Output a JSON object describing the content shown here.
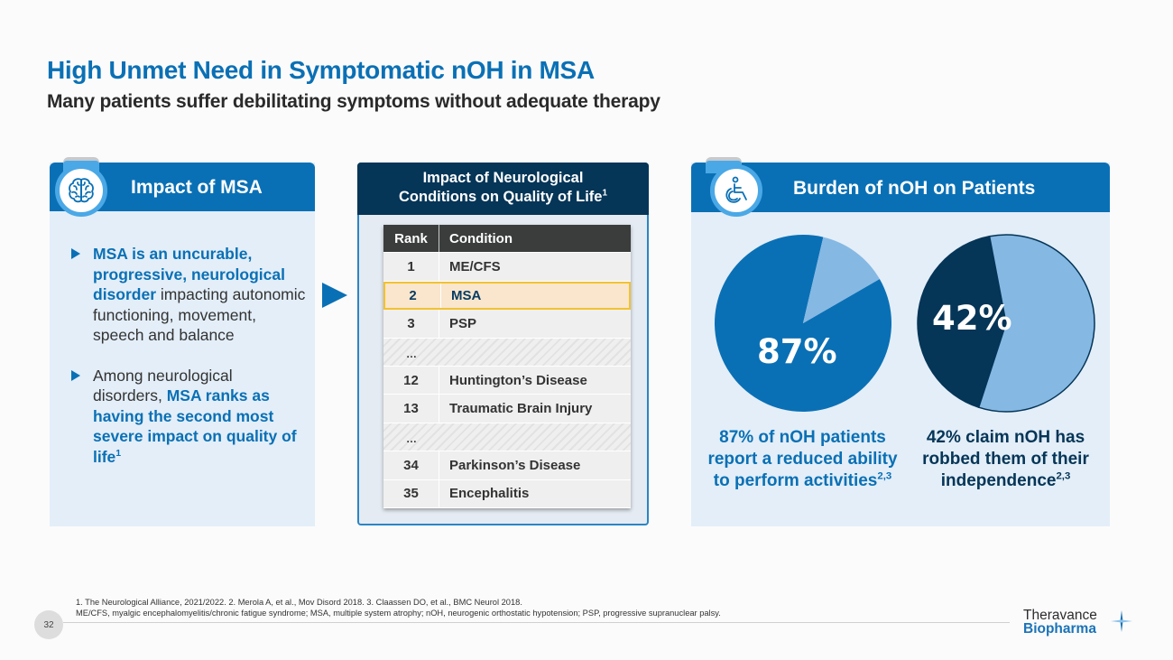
{
  "header": {
    "title": "High Unmet Need in Symptomatic nOH in MSA",
    "subtitle": "Many patients suffer debilitating symptoms without adequate therapy"
  },
  "left_panel": {
    "icon": "brain-icon",
    "title": "Impact of MSA",
    "bullets": [
      {
        "bold": "MSA is an uncurable, progressive, neurological disorder",
        "rest": " impacting autonomic functioning, movement, speech and balance"
      },
      {
        "lead": "Among neurological disorders, ",
        "bold": "MSA ranks as having the second most severe impact on quality of life",
        "sup": "1"
      }
    ]
  },
  "middle_panel": {
    "title_line1": "Impact of Neurological",
    "title_line2": "Conditions on Quality of Life",
    "title_sup": "1",
    "table": {
      "headers": [
        "Rank",
        "Condition"
      ],
      "rows": [
        {
          "rank": "1",
          "condition": "ME/CFS"
        },
        {
          "rank": "2",
          "condition": "MSA",
          "highlight": true
        },
        {
          "rank": "3",
          "condition": "PSP"
        },
        {
          "rank": "…",
          "condition": "",
          "ellipsis": true
        },
        {
          "rank": "12",
          "condition": "Huntington’s Disease"
        },
        {
          "rank": "13",
          "condition": "Traumatic Brain Injury"
        },
        {
          "rank": "…",
          "condition": "",
          "ellipsis": true
        },
        {
          "rank": "34",
          "condition": "Parkinson’s Disease"
        },
        {
          "rank": "35",
          "condition": "Encephalitis"
        }
      ]
    }
  },
  "right_panel": {
    "icon": "wheelchair-icon",
    "title": "Burden of nOH on Patients",
    "captions": [
      {
        "text": "87% of nOH patients report a reduced ability to perform activities",
        "sup": "2,3"
      },
      {
        "text": "42% claim nOH has robbed them of their independence",
        "sup": "2,3"
      }
    ]
  },
  "chart_data": [
    {
      "type": "pie",
      "title": "",
      "label": "87%",
      "slices": [
        {
          "name": "Reduced ability to perform activities",
          "value": 87,
          "color": "#0a70b5"
        },
        {
          "name": "Other",
          "value": 13,
          "color": "#85b8e3"
        }
      ]
    },
    {
      "type": "pie",
      "title": "",
      "label": "42%",
      "slices": [
        {
          "name": "nOH has robbed them of independence",
          "value": 42,
          "color": "#053557"
        },
        {
          "name": "Other",
          "value": 58,
          "color": "#85b8e3"
        }
      ]
    }
  ],
  "footer": {
    "references": "1. The Neurological Alliance, 2021/2022. 2. Merola A, et al., Mov Disord 2018. 3. Claassen DO, et al., BMC Neurol 2018.",
    "abbreviations": "ME/CFS, myalgic encephalomyelitis/chronic fatigue syndrome; MSA, multiple system atrophy; nOH, neurogenic orthostatic hypotension; PSP, progressive supranuclear palsy.",
    "page_number": "32",
    "logo_line1": "Theravance",
    "logo_line2": "Biopharma"
  },
  "colors": {
    "primary_blue": "#0a70b5",
    "navy": "#053557",
    "light_blue": "#85b8e3",
    "panel_bg": "#e3eef8",
    "highlight_fill": "#f9e6cd",
    "highlight_border": "#f2c230"
  }
}
